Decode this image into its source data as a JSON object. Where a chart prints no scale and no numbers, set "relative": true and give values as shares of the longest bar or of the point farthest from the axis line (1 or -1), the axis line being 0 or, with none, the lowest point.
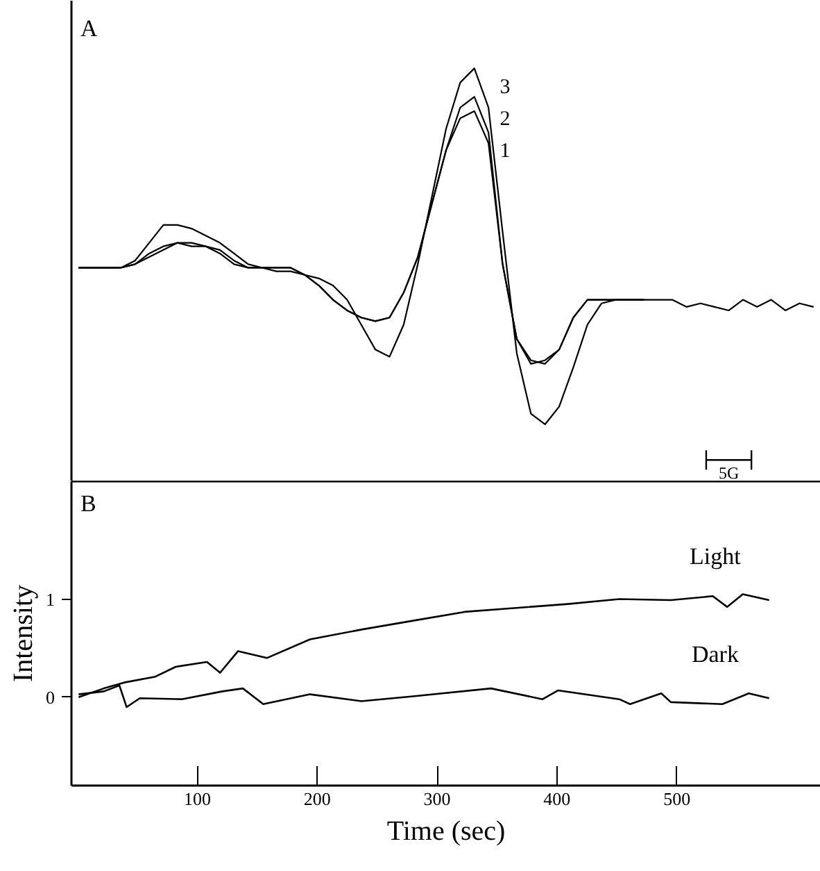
{
  "chart_data": [
    {
      "type": "line",
      "title": "A",
      "relative": true,
      "tick_labels": false,
      "annotations": [
        "5G"
      ],
      "categories": [
        null,
        null,
        null,
        null,
        null,
        null,
        null,
        null,
        null,
        null,
        null,
        null,
        null,
        null,
        null,
        null,
        null,
        null,
        null,
        null,
        null,
        null,
        null,
        null,
        null,
        null,
        null,
        null,
        null,
        null,
        null,
        null,
        null,
        null,
        null,
        null,
        null,
        null,
        null,
        null,
        null,
        null,
        null,
        null,
        null,
        null,
        null,
        null,
        null,
        null,
        null,
        null,
        null
      ],
      "series": [
        {
          "name": "1",
          "color": "#000000",
          "values": [
            0.44,
            0.44,
            0.44,
            0.44,
            0.45,
            0.47,
            0.49,
            0.51,
            0.51,
            0.5,
            0.49,
            0.46,
            0.44,
            0.44,
            0.44,
            0.44,
            0.42,
            0.39,
            0.35,
            0.32,
            0.3,
            0.29,
            0.3,
            0.37,
            0.47,
            0.62,
            0.77,
            0.86,
            0.88,
            0.79,
            0.45,
            0.24,
            0.18,
            0.17,
            0.21,
            0.3,
            0.35,
            0.35,
            0.35,
            0.35,
            0.35,
            null,
            null,
            null,
            null,
            null,
            null,
            null,
            null,
            null,
            null,
            null,
            null
          ]
        },
        {
          "name": "2",
          "color": "#000000",
          "values": [
            0.44,
            0.44,
            0.44,
            0.44,
            0.45,
            0.48,
            0.5,
            0.51,
            0.5,
            0.5,
            0.48,
            0.45,
            0.44,
            0.44,
            0.44,
            0.44,
            0.42,
            0.39,
            0.35,
            0.32,
            0.3,
            0.29,
            0.3,
            0.37,
            0.47,
            0.62,
            0.77,
            0.89,
            0.92,
            0.82,
            0.45,
            0.24,
            0.17,
            0.18,
            0.21,
            0.3,
            0.35,
            0.35,
            0.35,
            0.35,
            0.35,
            null,
            null,
            null,
            null,
            null,
            null,
            null,
            null,
            null,
            null,
            null,
            null
          ]
        },
        {
          "name": "3",
          "color": "#000000",
          "values": [
            0.44,
            0.44,
            0.44,
            0.44,
            0.46,
            0.51,
            0.56,
            0.56,
            0.55,
            0.53,
            0.51,
            0.48,
            0.45,
            0.44,
            0.43,
            0.43,
            0.42,
            0.41,
            0.39,
            0.35,
            0.28,
            0.21,
            0.19,
            0.28,
            0.45,
            0.64,
            0.83,
            0.96,
            1.0,
            0.89,
            0.54,
            0.2,
            0.03,
            0,
            0.05,
            0.16,
            0.28,
            0.34,
            0.35,
            0.35,
            0.35,
            0.35,
            0.35,
            0.33,
            0.34,
            0.33,
            0.32,
            0.35,
            0.33,
            0.35,
            0.32,
            0.34,
            0.33
          ]
        }
      ]
    },
    {
      "type": "line",
      "title": "B",
      "xlabel": "Time (sec)",
      "ylabel": "Intensity",
      "xlim": [
        -5,
        620
      ],
      "ylim": [
        -0.9,
        2.2
      ],
      "xticks": [
        100,
        200,
        300,
        400,
        500
      ],
      "yticks": [
        0,
        1
      ],
      "series": [
        {
          "name": "Light",
          "color": "#000000",
          "x": [
            1,
            22,
            39,
            65,
            82,
            108,
            119,
            134,
            158,
            194,
            237,
            280,
            323,
            366,
            409,
            452,
            495,
            530,
            542,
            555,
            577
          ],
          "values": [
            0.0,
            0.09,
            0.15,
            0.21,
            0.31,
            0.36,
            0.25,
            0.47,
            0.4,
            0.59,
            0.69,
            0.78,
            0.87,
            0.91,
            0.95,
            1.0,
            0.99,
            1.03,
            0.92,
            1.05,
            0.99
          ]
        },
        {
          "name": "Dark",
          "color": "#000000",
          "x": [
            1,
            22,
            35,
            41,
            52,
            87,
            121,
            138,
            155,
            194,
            237,
            280,
            345,
            388,
            401,
            452,
            461,
            487,
            495,
            538,
            560,
            577
          ],
          "values": [
            0.03,
            0.06,
            0.12,
            -0.1,
            -0.01,
            -0.02,
            0.06,
            0.09,
            -0.07,
            0.03,
            -0.04,
            0.01,
            0.09,
            -0.02,
            0.07,
            -0.02,
            -0.07,
            0.04,
            -0.05,
            -0.07,
            0.04,
            -0.01
          ]
        }
      ]
    }
  ]
}
